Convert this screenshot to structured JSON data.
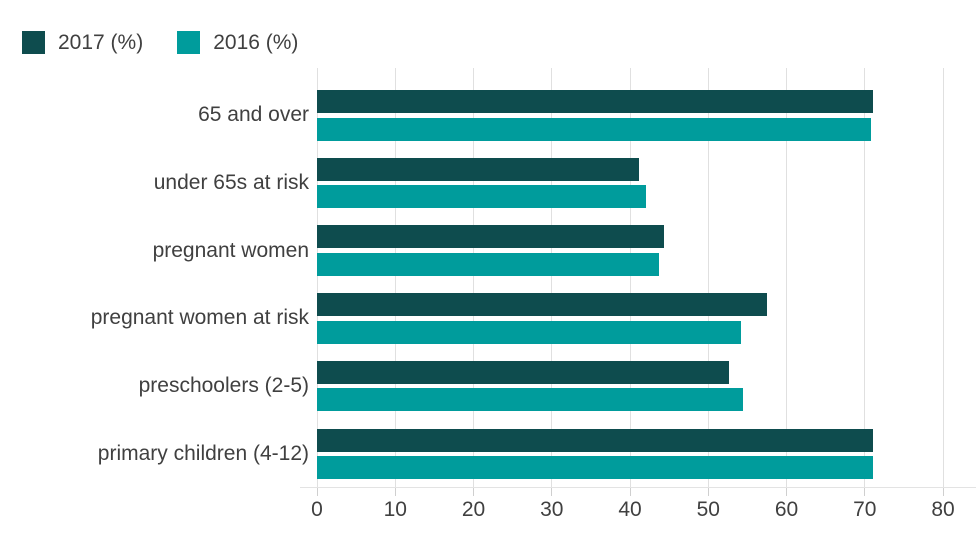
{
  "legend": {
    "items": [
      {
        "label": "2017 (%)",
        "color": "#0e4c4e"
      },
      {
        "label": "2016 (%)",
        "color": "#009c9c"
      }
    ]
  },
  "chart_data": {
    "type": "bar",
    "orientation": "horizontal",
    "title": "",
    "xlabel": "",
    "ylabel": "",
    "categories": [
      "65 and over",
      "under 65s at risk",
      "pregnant women",
      "pregnant women at risk",
      "preschoolers (2-5)",
      "primary children (4-12)"
    ],
    "series": [
      {
        "name": "2017 (%)",
        "color": "#0e4c4e",
        "values": [
          71.0,
          41.2,
          44.3,
          57.5,
          52.6,
          71.0
        ]
      },
      {
        "name": "2016 (%)",
        "color": "#009c9c",
        "values": [
          70.8,
          42.1,
          43.7,
          54.2,
          54.5,
          71.1
        ]
      }
    ],
    "xlim": [
      0,
      80
    ],
    "xticks": [
      0,
      10,
      20,
      30,
      40,
      50,
      60,
      70,
      80
    ],
    "grid": true,
    "legend_position": "top-left",
    "colors": {
      "grid": "#e0e0e0",
      "tick": "#cfcfcf",
      "baseline": "#e3e3e3",
      "text": "#404040",
      "background": "#ffffff"
    }
  }
}
